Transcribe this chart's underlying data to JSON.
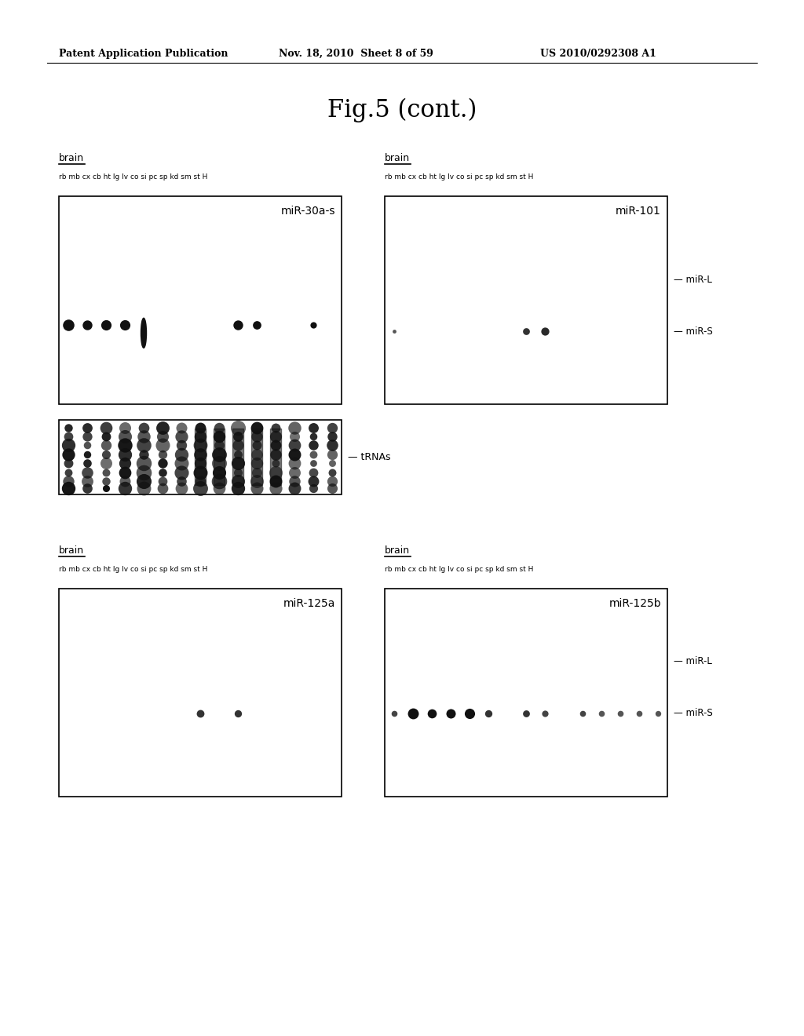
{
  "title": "Fig.5 (cont.)",
  "header_left": "Patent Application Publication",
  "header_middle": "Nov. 18, 2010  Sheet 8 of 59",
  "header_right": "US 2010/0292308 A1",
  "col_labels": "rb mb cx cb ht lg lv co si pc sp kd sm st H",
  "brain_label": "brain",
  "bg_color": "#ffffff",
  "text_color": "#000000",
  "dot_color": "#111111",
  "panels": [
    {
      "name": "miR-30a-s",
      "has_mirL": false,
      "has_mirS": false,
      "mirS_level": 0.38,
      "mirL_level": 0.65,
      "dots_mirs": [
        {
          "col": 0,
          "size": 110,
          "color": "#111111"
        },
        {
          "col": 1,
          "size": 80,
          "color": "#111111"
        },
        {
          "col": 2,
          "size": 90,
          "color": "#111111"
        },
        {
          "col": 3,
          "size": 90,
          "color": "#111111"
        },
        {
          "col": 4,
          "size": -1,
          "color": "#111111"
        },
        {
          "col": 9,
          "size": 80,
          "color": "#111111"
        },
        {
          "col": 10,
          "size": 60,
          "color": "#111111"
        },
        {
          "col": 13,
          "size": 35,
          "color": "#111111"
        }
      ]
    },
    {
      "name": "miR-101",
      "has_mirL": true,
      "has_mirS": true,
      "mirS_level": 0.35,
      "mirL_level": 0.6,
      "dots_mirs": [
        {
          "col": 0,
          "size": 12,
          "color": "#555555"
        },
        {
          "col": 7,
          "size": 40,
          "color": "#333333"
        },
        {
          "col": 8,
          "size": 55,
          "color": "#2a2a2a"
        }
      ]
    },
    {
      "name": "miR-125a",
      "has_mirL": false,
      "has_mirS": false,
      "mirS_level": 0.4,
      "mirL_level": 0.65,
      "dots_mirs": [
        {
          "col": 7,
          "size": 50,
          "color": "#333333"
        },
        {
          "col": 9,
          "size": 45,
          "color": "#333333"
        }
      ]
    },
    {
      "name": "miR-125b",
      "has_mirL": true,
      "has_mirS": true,
      "mirS_level": 0.4,
      "mirL_level": 0.65,
      "dots_mirs": [
        {
          "col": 0,
          "size": 30,
          "color": "#444444"
        },
        {
          "col": 1,
          "size": 100,
          "color": "#111111"
        },
        {
          "col": 2,
          "size": 70,
          "color": "#111111"
        },
        {
          "col": 3,
          "size": 75,
          "color": "#111111"
        },
        {
          "col": 4,
          "size": 90,
          "color": "#111111"
        },
        {
          "col": 5,
          "size": 45,
          "color": "#333333"
        },
        {
          "col": 7,
          "size": 40,
          "color": "#333333"
        },
        {
          "col": 8,
          "size": 35,
          "color": "#444444"
        },
        {
          "col": 10,
          "size": 30,
          "color": "#444444"
        },
        {
          "col": 11,
          "size": 30,
          "color": "#555555"
        },
        {
          "col": 12,
          "size": 30,
          "color": "#555555"
        },
        {
          "col": 13,
          "size": 30,
          "color": "#555555"
        },
        {
          "col": 14,
          "size": 28,
          "color": "#555555"
        }
      ]
    }
  ]
}
